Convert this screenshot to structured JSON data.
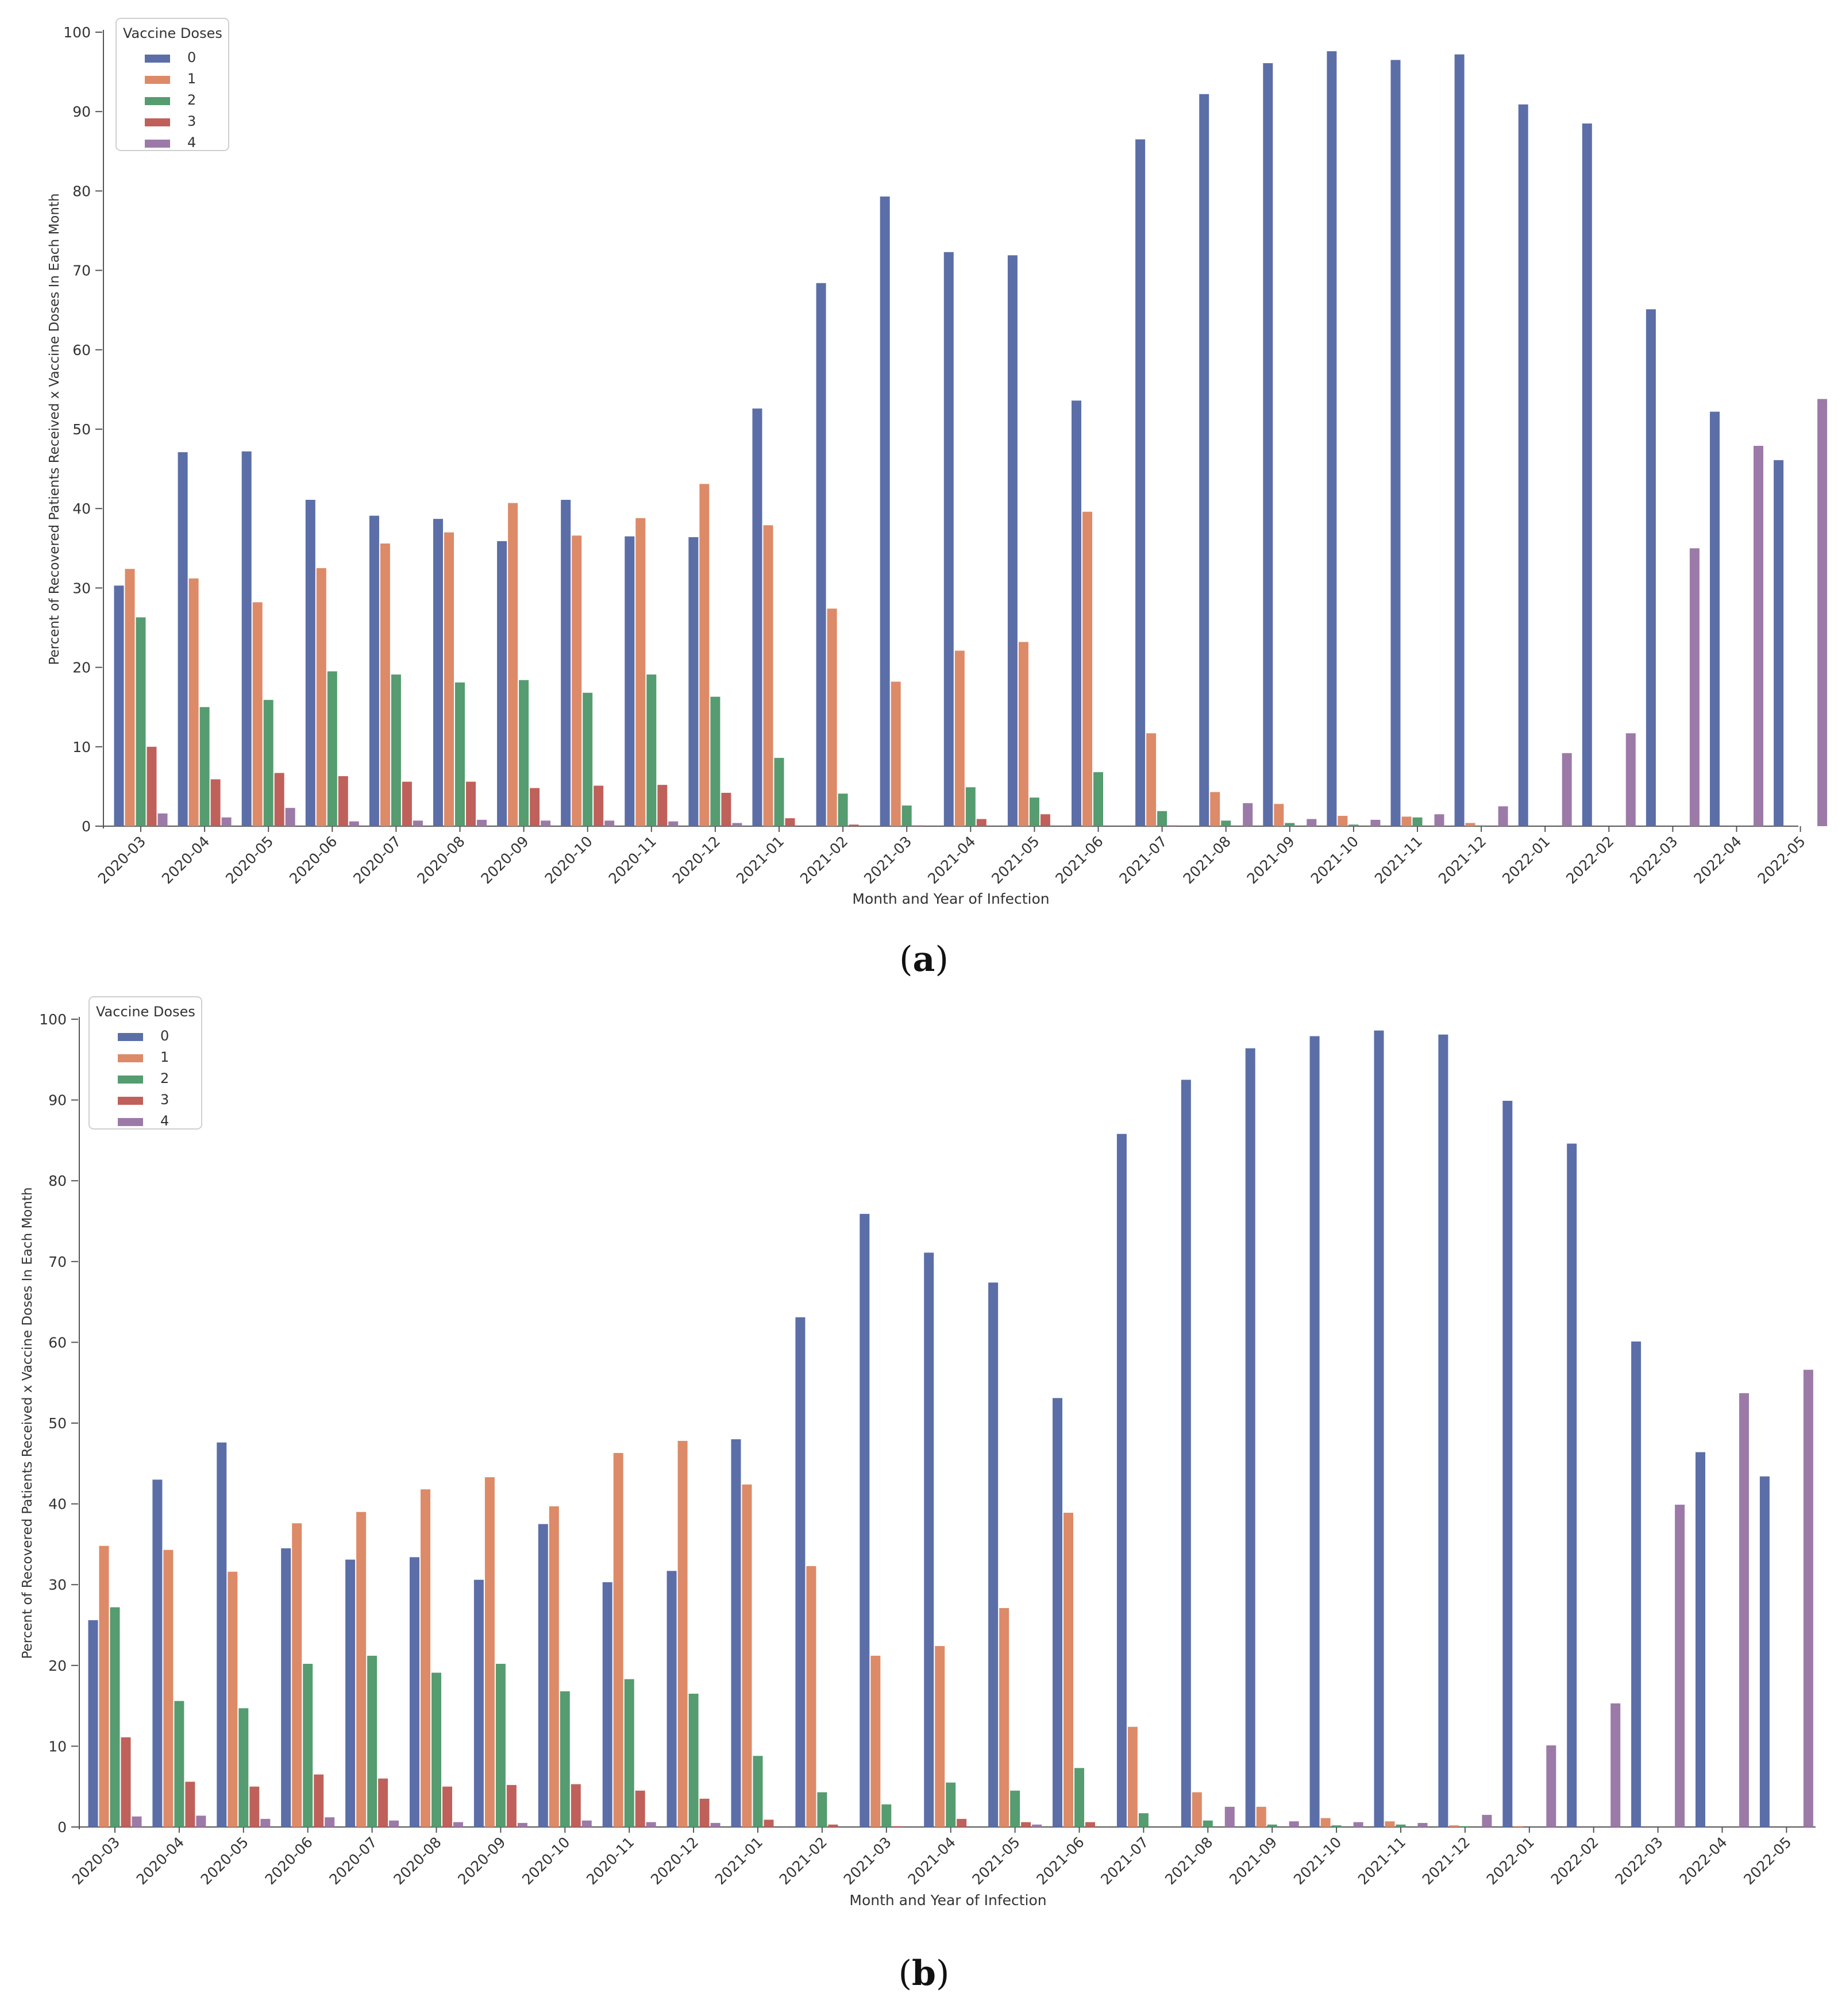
{
  "chart_data": [
    {
      "type": "bar",
      "panel_label": "(a)",
      "caption_letter": "a",
      "xlabel": "Month and Year of Infection",
      "ylabel": "Percent of Recovered Patients Received x Vaccine Doses In Each Month",
      "ylim": [
        0,
        100
      ],
      "yticks": [
        "0",
        "10",
        "20",
        "30",
        "40",
        "50",
        "60",
        "70",
        "80",
        "90",
        "100"
      ],
      "legend": {
        "title": "Vaccine Doses",
        "position": "top-left"
      },
      "categories": [
        "2020-03",
        "2020-04",
        "2020-05",
        "2020-06",
        "2020-07",
        "2020-08",
        "2020-09",
        "2020-10",
        "2020-11",
        "2020-12",
        "2021-01",
        "2021-02",
        "2021-03",
        "2021-04",
        "2021-05",
        "2021-06",
        "2021-07",
        "2021-08",
        "2021-09",
        "2021-10",
        "2021-11",
        "2021-12",
        "2022-01",
        "2022-02",
        "2022-03",
        "2022-04",
        "2022-05"
      ],
      "series": [
        {
          "name": "0",
          "color": "#5b6ea8",
          "values": [
            30.3,
            47.1,
            47.2,
            41.1,
            39.1,
            38.7,
            35.9,
            41.1,
            36.5,
            36.4,
            52.6,
            68.4,
            79.3,
            72.3,
            71.9,
            53.6,
            86.5,
            92.2,
            96.1,
            97.6,
            96.5,
            97.2,
            90.9,
            88.5,
            65.1,
            52.2,
            46.1
          ]
        },
        {
          "name": "1",
          "color": "#dd8a68",
          "values": [
            32.4,
            31.2,
            28.2,
            32.5,
            35.6,
            37.0,
            40.7,
            36.6,
            38.8,
            43.1,
            37.9,
            27.4,
            18.2,
            22.1,
            23.2,
            39.6,
            11.7,
            4.3,
            2.8,
            1.3,
            1.2,
            0.4,
            0,
            0,
            0,
            0,
            0
          ]
        },
        {
          "name": "2",
          "color": "#559c70",
          "values": [
            26.3,
            15.0,
            15.9,
            19.5,
            19.1,
            18.1,
            18.4,
            16.8,
            19.1,
            16.3,
            8.6,
            4.1,
            2.6,
            4.9,
            3.6,
            6.8,
            1.9,
            0.7,
            0.4,
            0.2,
            1.1,
            0.1,
            0,
            0,
            0,
            0,
            0
          ]
        },
        {
          "name": "3",
          "color": "#c0605b",
          "values": [
            10.0,
            5.9,
            6.7,
            6.3,
            5.6,
            5.6,
            4.8,
            5.1,
            5.2,
            4.2,
            1.0,
            0.2,
            0.1,
            0.9,
            1.5,
            0,
            0.1,
            0,
            0,
            0,
            0,
            0,
            0,
            0,
            0,
            0,
            0
          ]
        },
        {
          "name": "4",
          "color": "#9c7aa8",
          "values": [
            1.6,
            1.1,
            2.3,
            0.6,
            0.7,
            0.8,
            0.7,
            0.7,
            0.6,
            0.4,
            0,
            0,
            0,
            0,
            0,
            0,
            0,
            2.9,
            0.9,
            0.8,
            1.5,
            2.5,
            9.2,
            11.7,
            35.0,
            47.9,
            53.8
          ]
        }
      ]
    },
    {
      "type": "bar",
      "panel_label": "(b)",
      "caption_letter": "b",
      "xlabel": "Month and Year of Infection",
      "ylabel": "Percent of Recovered Patients Received x Vaccine Doses In Each Month",
      "ylim": [
        0,
        100
      ],
      "yticks": [
        "0",
        "10",
        "20",
        "30",
        "40",
        "50",
        "60",
        "70",
        "80",
        "90",
        "100"
      ],
      "legend": {
        "title": "Vaccine Doses",
        "position": "top-left"
      },
      "categories": [
        "2020-03",
        "2020-04",
        "2020-05",
        "2020-06",
        "2020-07",
        "2020-08",
        "2020-09",
        "2020-10",
        "2020-11",
        "2020-12",
        "2021-01",
        "2021-02",
        "2021-03",
        "2021-04",
        "2021-05",
        "2021-06",
        "2021-07",
        "2021-08",
        "2021-09",
        "2021-10",
        "2021-11",
        "2021-12",
        "2022-01",
        "2022-02",
        "2022-03",
        "2022-04",
        "2022-05"
      ],
      "series": [
        {
          "name": "0",
          "color": "#5b6ea8",
          "values": [
            25.6,
            43.0,
            47.6,
            34.5,
            33.1,
            33.4,
            30.6,
            37.5,
            30.3,
            31.7,
            48.0,
            63.1,
            75.9,
            71.1,
            67.4,
            53.1,
            85.8,
            92.5,
            96.4,
            97.9,
            98.6,
            98.1,
            89.9,
            84.6,
            60.1,
            46.4,
            43.4
          ]
        },
        {
          "name": "1",
          "color": "#dd8a68",
          "values": [
            34.8,
            34.3,
            31.6,
            37.6,
            39.0,
            41.8,
            43.3,
            39.7,
            46.3,
            47.8,
            42.4,
            32.3,
            21.2,
            22.4,
            27.1,
            38.9,
            12.4,
            4.3,
            2.5,
            1.1,
            0.7,
            0.2,
            0.1,
            0,
            0,
            0,
            0
          ]
        },
        {
          "name": "2",
          "color": "#559c70",
          "values": [
            27.2,
            15.6,
            14.7,
            20.2,
            21.2,
            19.1,
            20.2,
            16.8,
            18.3,
            16.5,
            8.8,
            4.3,
            2.8,
            5.5,
            4.5,
            7.3,
            1.7,
            0.8,
            0.3,
            0.2,
            0.3,
            0.1,
            0,
            0,
            0,
            0,
            0
          ]
        },
        {
          "name": "3",
          "color": "#c0605b",
          "values": [
            11.1,
            5.6,
            5.0,
            6.5,
            6.0,
            5.0,
            5.2,
            5.3,
            4.5,
            3.5,
            0.9,
            0.3,
            0.1,
            1.0,
            0.6,
            0.6,
            0,
            0,
            0,
            0,
            0,
            0,
            0,
            0,
            0,
            0,
            0
          ]
        },
        {
          "name": "4",
          "color": "#9c7aa8",
          "values": [
            1.3,
            1.4,
            1.0,
            1.2,
            0.8,
            0.6,
            0.5,
            0.8,
            0.6,
            0.5,
            0,
            0,
            0,
            0,
            0.3,
            0,
            0,
            2.5,
            0.7,
            0.6,
            0.5,
            1.5,
            10.1,
            15.3,
            39.9,
            53.7,
            56.6
          ]
        }
      ]
    }
  ]
}
